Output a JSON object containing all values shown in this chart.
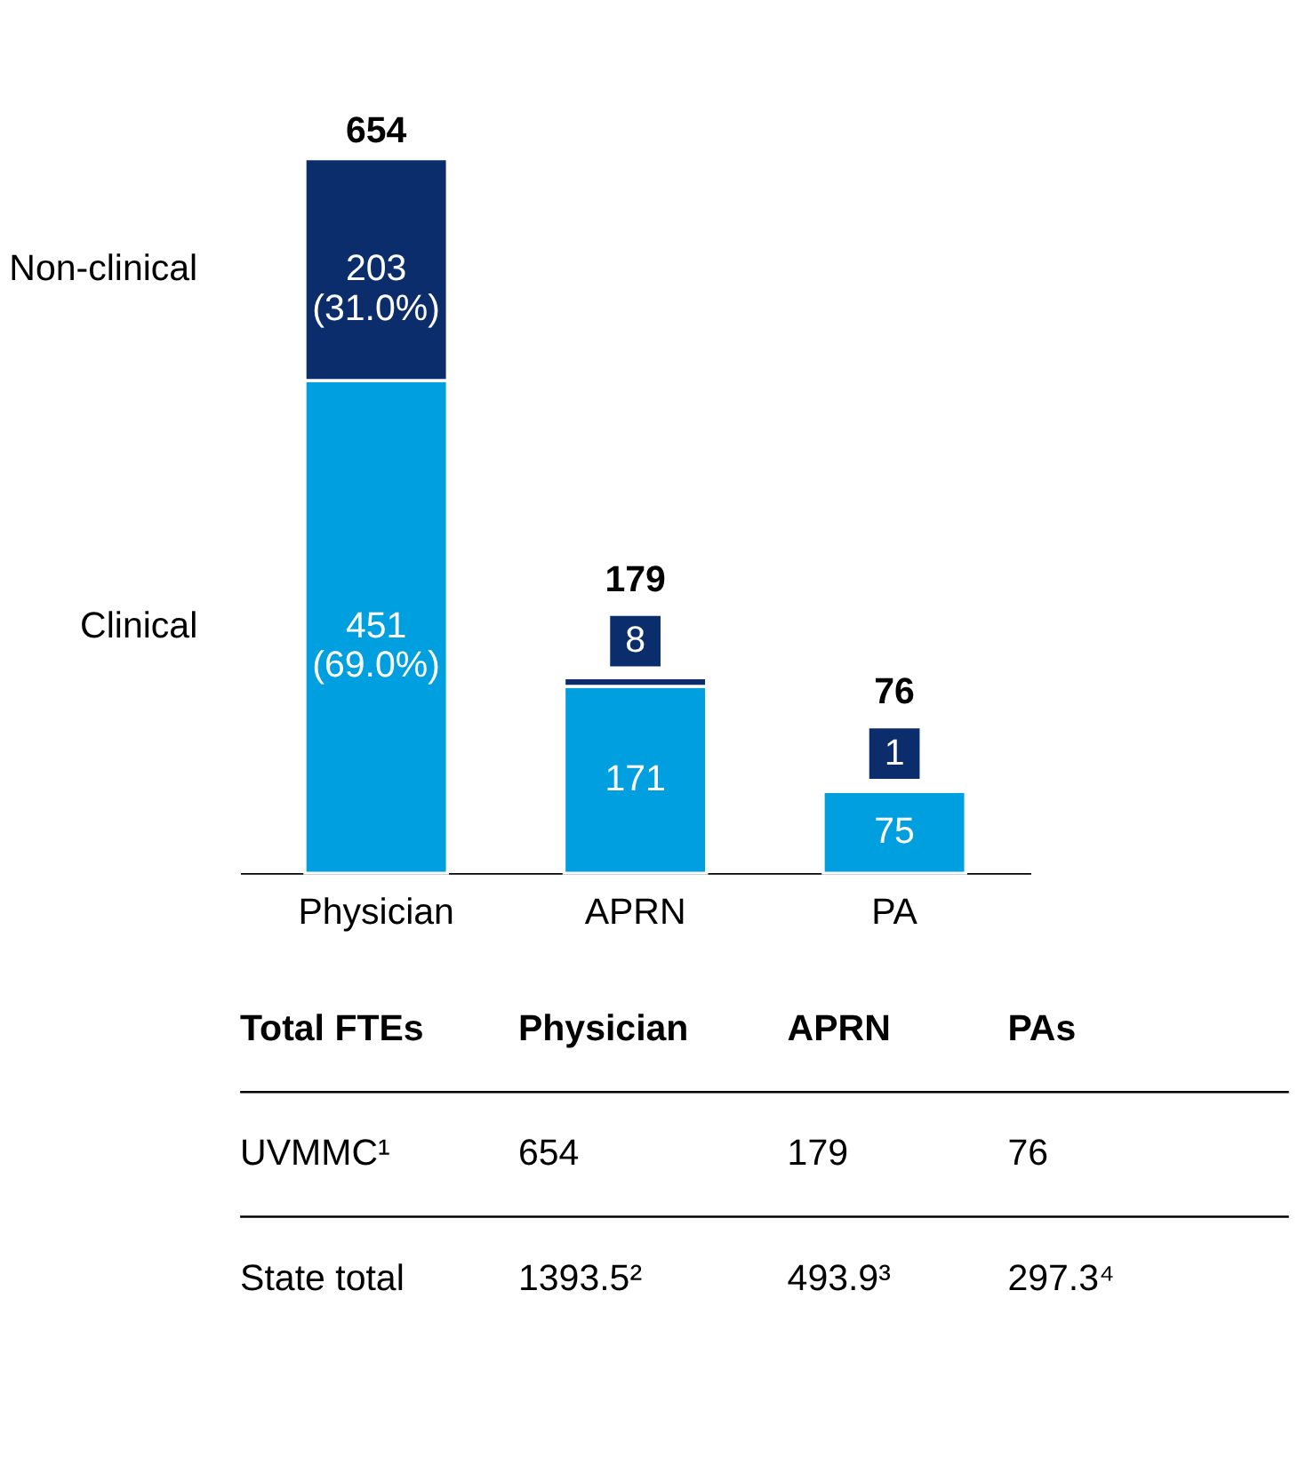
{
  "chart_data": {
    "type": "bar",
    "stacked": true,
    "categories": [
      "Physician",
      "APRN",
      "PA"
    ],
    "series": [
      {
        "name": "Clinical",
        "color": "#009fdf",
        "values": [
          451,
          171,
          75
        ],
        "value_labels": [
          "451\n(69.0%)",
          "171",
          "75"
        ]
      },
      {
        "name": "Non-clinical",
        "color": "#0c2d6b",
        "values": [
          203,
          8,
          1
        ],
        "value_labels": [
          "203\n(31.0%)",
          "8",
          "1"
        ]
      }
    ],
    "totals": [
      "654",
      "179",
      "76"
    ],
    "legend": false,
    "grid": false,
    "annotations": [
      "Total FTEs",
      "Physician",
      "APRN",
      "PAs",
      "UVMMC¹",
      "654",
      "179",
      "76",
      "State total",
      "1393.5²",
      "493.9³",
      "297.3⁴"
    ]
  }
}
